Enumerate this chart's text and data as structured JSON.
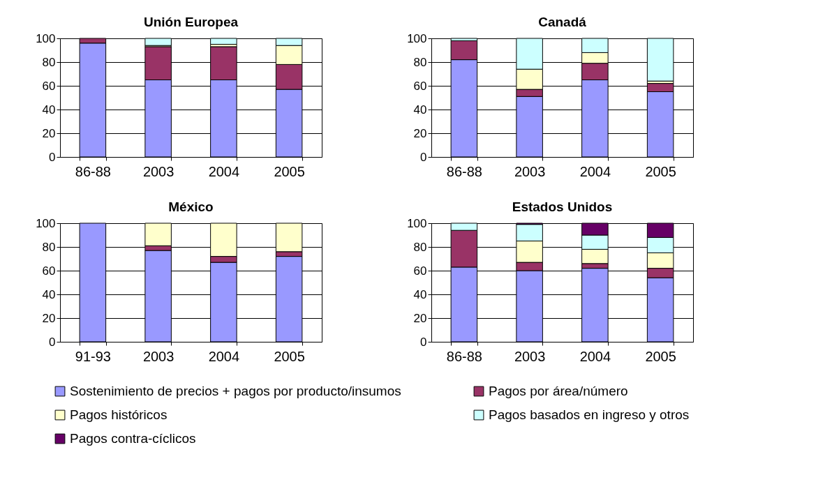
{
  "chart_data": [
    {
      "type": "bar",
      "title": "Unión Europea",
      "stacked": true,
      "categories": [
        "86-88",
        "2003",
        "2004",
        "2005"
      ],
      "ylim": [
        0,
        100
      ],
      "yticks": [
        0,
        20,
        40,
        60,
        80,
        100
      ],
      "grid": "y",
      "legend": "bottom",
      "series": [
        {
          "name": "Sostenimiento de precios + pagos por producto/insumos",
          "color": "#9999ff",
          "values": [
            96,
            65,
            65,
            57
          ]
        },
        {
          "name": "Pagos por área/número",
          "color": "#993366",
          "values": [
            4,
            28,
            28,
            21
          ]
        },
        {
          "name": "Pagos históricos",
          "color": "#ffffcc",
          "values": [
            null,
            1,
            2,
            16
          ]
        },
        {
          "name": "Pagos basados en ingreso y otros",
          "color": "#ccffff",
          "values": [
            null,
            6,
            5,
            6
          ]
        }
      ]
    },
    {
      "type": "bar",
      "title": "Canadá",
      "stacked": true,
      "categories": [
        "86-88",
        "2003",
        "2004",
        "2005"
      ],
      "ylim": [
        0,
        100
      ],
      "yticks": [
        0,
        20,
        40,
        60,
        80,
        100
      ],
      "grid": "y",
      "legend": "bottom",
      "series": [
        {
          "name": "Sostenimiento de precios + pagos por producto/insumos",
          "color": "#9999ff",
          "values": [
            82,
            51,
            65,
            55
          ]
        },
        {
          "name": "Pagos por área/número",
          "color": "#993366",
          "values": [
            16,
            6,
            14,
            7
          ]
        },
        {
          "name": "Pagos históricos",
          "color": "#ffffcc",
          "values": [
            null,
            17,
            9,
            2
          ]
        },
        {
          "name": "Pagos basados en ingreso y otros",
          "color": "#ccffff",
          "values": [
            2,
            26,
            12,
            36
          ]
        }
      ]
    },
    {
      "type": "bar",
      "title": "México",
      "stacked": true,
      "categories": [
        "91-93",
        "2003",
        "2004",
        "2005"
      ],
      "ylim": [
        0,
        100
      ],
      "yticks": [
        0,
        20,
        40,
        60,
        80,
        100
      ],
      "grid": "y",
      "legend": "bottom",
      "series": [
        {
          "name": "Sostenimiento de precios + pagos por producto/insumos",
          "color": "#9999ff",
          "values": [
            100,
            77,
            67,
            72
          ]
        },
        {
          "name": "Pagos por área/número",
          "color": "#993366",
          "values": [
            null,
            4,
            5,
            4
          ]
        },
        {
          "name": "Pagos históricos",
          "color": "#ffffcc",
          "values": [
            null,
            19,
            28,
            24
          ]
        }
      ]
    },
    {
      "type": "bar",
      "title": "Estados Unidos",
      "stacked": true,
      "categories": [
        "86-88",
        "2003",
        "2004",
        "2005"
      ],
      "ylim": [
        0,
        100
      ],
      "yticks": [
        0,
        20,
        40,
        60,
        80,
        100
      ],
      "grid": "y",
      "legend": "bottom",
      "series": [
        {
          "name": "Sostenimiento de precios + pagos por producto/insumos",
          "color": "#9999ff",
          "values": [
            63,
            60,
            62,
            54
          ]
        },
        {
          "name": "Pagos por área/número",
          "color": "#993366",
          "values": [
            31,
            7,
            4,
            8
          ]
        },
        {
          "name": "Pagos históricos",
          "color": "#ffffcc",
          "values": [
            null,
            18,
            12,
            13
          ]
        },
        {
          "name": "Pagos basados en ingreso y otros",
          "color": "#ccffff",
          "values": [
            6,
            14,
            12,
            13
          ]
        },
        {
          "name": "Pagos contra-cíclicos",
          "color": "#660066",
          "values": [
            null,
            1,
            10,
            12
          ]
        }
      ]
    }
  ]
}
